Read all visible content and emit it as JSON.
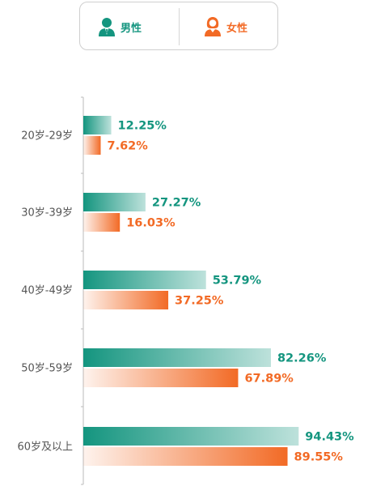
{
  "legend": {
    "male_label": "男性",
    "female_label": "女性",
    "male_icon": "male-user-icon",
    "female_icon": "female-user-icon"
  },
  "colors": {
    "male": "#14957f",
    "female": "#f26a25"
  },
  "chart_data": {
    "type": "bar",
    "orientation": "horizontal",
    "categories": [
      "20岁-29岁",
      "30岁-39岁",
      "40岁-49岁",
      "50岁-59岁",
      "60岁及以上"
    ],
    "series": [
      {
        "name": "男性",
        "values": [
          12.25,
          27.27,
          53.79,
          82.26,
          94.43
        ]
      },
      {
        "name": "女性",
        "values": [
          7.62,
          16.03,
          37.25,
          67.89,
          89.55
        ]
      }
    ],
    "value_labels": {
      "male": [
        "12.25%",
        "27.27%",
        "53.79%",
        "82.26%",
        "94.43%"
      ],
      "female": [
        "7.62%",
        "16.03%",
        "37.25%",
        "67.89%",
        "89.55%"
      ]
    },
    "xlim": [
      0,
      100
    ],
    "legend_position": "top-center",
    "grid": false
  }
}
